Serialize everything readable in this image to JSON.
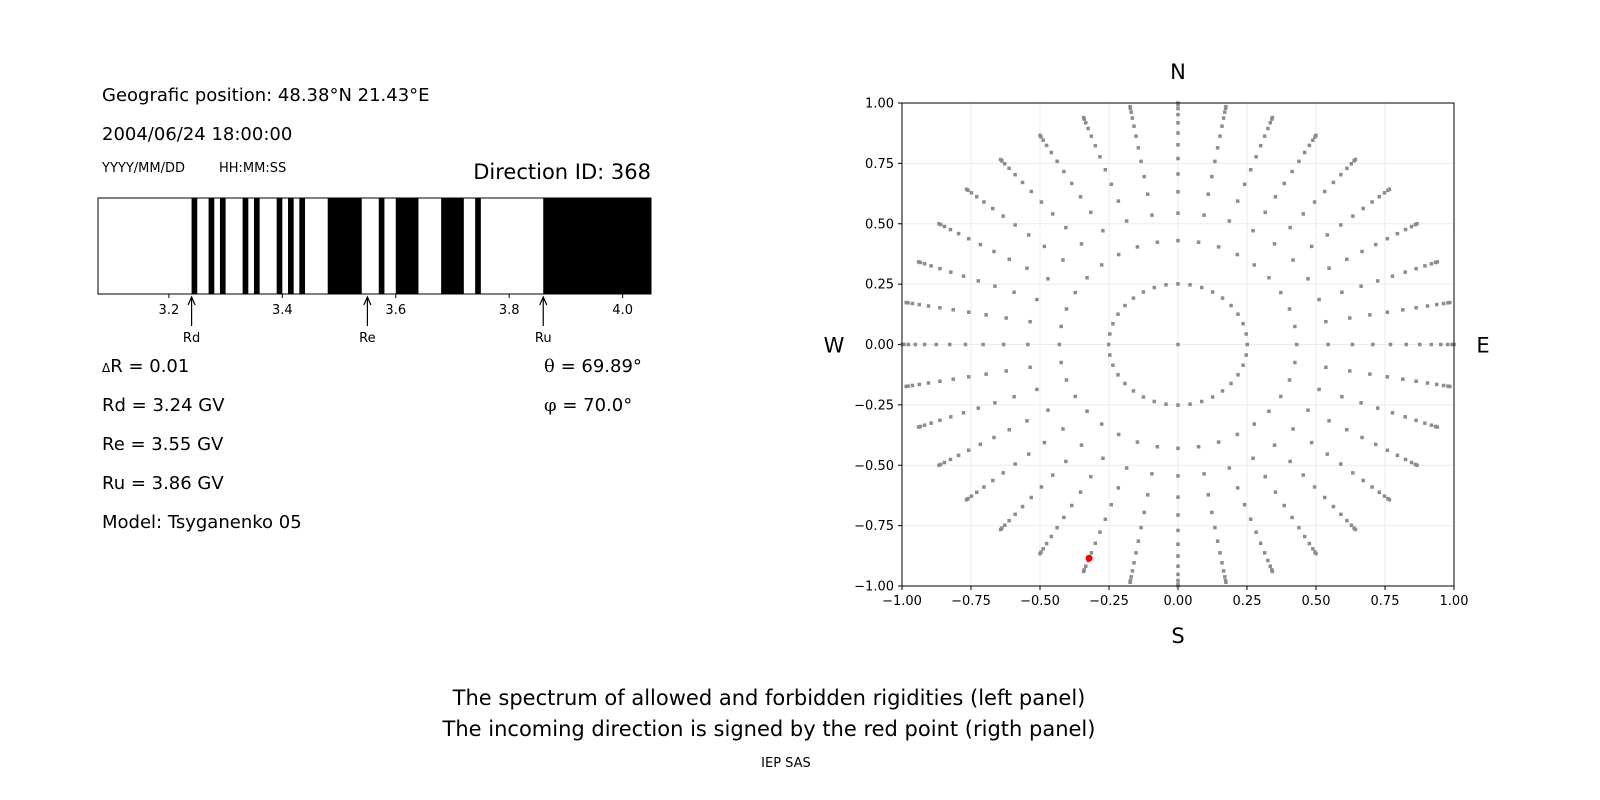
{
  "left_panel": {
    "position": "Geografic position: 48.38°N 21.43°E",
    "datetime": "2004/06/24 18:00:00",
    "date_format": "YYYY/MM/DD",
    "time_format": "HH:MM:SS",
    "direction_id": "Direction ID: 368",
    "delta_r_symbol": "Δ",
    "delta_r": "R = 0.01",
    "rd": "Rd = 3.24 GV",
    "re": "Re = 3.55 GV",
    "ru": "Ru = 3.86 GV",
    "model": "Model: Tsyganenko 05",
    "theta_symbol": "θ",
    "theta": " = 69.89°",
    "phi_symbol": "φ",
    "phi": " = 70.0°"
  },
  "captions": {
    "line1": "The spectrum of allowed and forbidden rigidities (left panel)",
    "line2": "The incoming direction is signed by the red point (rigth panel)",
    "credit": "IEP SAS"
  },
  "chart_data": [
    {
      "type": "heatmap",
      "xlim": [
        3.075,
        4.05
      ],
      "xticks": [
        "3.2",
        "3.4",
        "3.6",
        "3.8",
        "4.0"
      ],
      "forbidden_bands": [
        [
          3.24,
          3.25
        ],
        [
          3.27,
          3.28
        ],
        [
          3.29,
          3.3
        ],
        [
          3.33,
          3.34
        ],
        [
          3.35,
          3.36
        ],
        [
          3.39,
          3.4
        ],
        [
          3.41,
          3.42
        ],
        [
          3.43,
          3.44
        ],
        [
          3.48,
          3.54
        ],
        [
          3.57,
          3.58
        ],
        [
          3.6,
          3.64
        ],
        [
          3.68,
          3.72
        ],
        [
          3.74,
          3.75
        ],
        [
          3.86,
          4.05
        ]
      ],
      "markers": [
        {
          "label": "Rd",
          "value": 3.24
        },
        {
          "label": "Re",
          "value": 3.55
        },
        {
          "label": "Ru",
          "value": 3.86
        }
      ],
      "colors": {
        "forbidden": "#000000",
        "allowed": "#ffffff"
      }
    },
    {
      "type": "scatter",
      "xlim": [
        -1,
        1
      ],
      "ylim": [
        -1,
        1
      ],
      "xticks": [
        "−1.00",
        "−0.75",
        "−0.50",
        "−0.25",
        "0.00",
        "0.25",
        "0.50",
        "0.75",
        "1.00"
      ],
      "yticks": [
        "1.00",
        "0.75",
        "0.50",
        "0.25",
        "0.00",
        "−0.25",
        "−0.50",
        "−0.75",
        "−1.00"
      ],
      "grid": true,
      "compass": {
        "n": "N",
        "s": "S",
        "w": "W",
        "e": "E"
      },
      "azimuth_step_deg": 10,
      "ring_radii": [
        0.251,
        0.43,
        0.544,
        0.632,
        0.706,
        0.77,
        0.827,
        0.876,
        0.918,
        0.952,
        0.977,
        0.993,
        1.0
      ],
      "center_point": [
        0,
        0
      ],
      "highlight_point": {
        "x": -0.322,
        "y": -0.885
      },
      "colors": {
        "points": "#8c8c8c",
        "highlight": "#ff0000",
        "grid": "#ebebeb"
      }
    }
  ]
}
